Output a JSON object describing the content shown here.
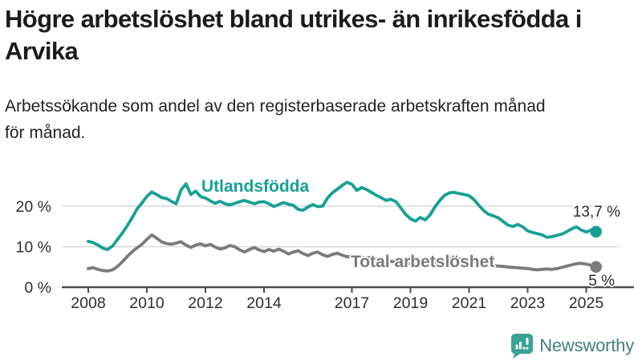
{
  "header": {
    "title": "Högre arbetslöshet bland utrikes- än inrikesfödda i Arvika",
    "title_lines": [
      "Högre arbetslöshet bland utrikes- än inrikesfödda i",
      "Arvika"
    ],
    "subtitle": "Arbetssökande som andel av den registerbaserade arbetskraften månad för månad.",
    "subtitle_lines": [
      "Arbetssökande som andel av den registerbaserade arbetskraften månad",
      "för månad."
    ]
  },
  "chart_data": {
    "type": "line",
    "title": "Högre arbetslöshet bland utrikes- än inrikesfödda i Arvika",
    "subtitle": "Arbetssökande som andel av den registerbaserade arbetskraften månad för månad.",
    "x_unit": "year-month",
    "x_start_year": 2008,
    "x_step_years": 0.16667,
    "x_end_year": 2025.33,
    "x_ticks": [
      2008,
      2010,
      2012,
      2014,
      2017,
      2019,
      2021,
      2023,
      2025
    ],
    "x_tick_labels": [
      "2008",
      "2010",
      "2012",
      "2014",
      "2017",
      "2019",
      "2021",
      "2023",
      "2025"
    ],
    "y_ticks": [
      0,
      10,
      20
    ],
    "y_tick_labels": [
      "0 %",
      "10 %",
      "20 %"
    ],
    "ylim": [
      0,
      29.5
    ],
    "grid": "horizontal",
    "legend_position": "inline-labels-on-lines",
    "axis_color": "#4c4c4c",
    "gridline_color": "#d9d9d9",
    "tick_label_color": "#2d2d2d",
    "end_label_color": "#2b2b2b",
    "series": [
      {
        "name": "Utlandsfödda",
        "color": "#16a095",
        "end_label": "13,7 %",
        "end_value": 13.7,
        "values": [
          11.3,
          11.0,
          10.4,
          9.6,
          9.3,
          10.2,
          11.8,
          13.4,
          15.2,
          17.2,
          19.3,
          20.8,
          22.4,
          23.5,
          22.9,
          22.1,
          21.9,
          21.2,
          20.6,
          24.0,
          25.5,
          22.9,
          23.7,
          22.4,
          22.0,
          21.3,
          20.7,
          21.2,
          20.6,
          20.3,
          20.7,
          21.1,
          21.4,
          21.0,
          20.6,
          21.0,
          21.1,
          20.6,
          19.9,
          20.4,
          20.9,
          20.5,
          20.2,
          19.2,
          19.0,
          19.8,
          20.4,
          19.9,
          20.0,
          22.0,
          23.3,
          24.2,
          25.1,
          25.9,
          25.4,
          23.9,
          24.6,
          24.1,
          23.4,
          22.7,
          22.1,
          21.4,
          21.7,
          21.1,
          19.6,
          18.0,
          16.9,
          16.3,
          17.2,
          16.6,
          17.8,
          19.8,
          21.4,
          22.7,
          23.3,
          23.4,
          23.1,
          22.9,
          22.6,
          21.6,
          20.2,
          18.9,
          18.0,
          17.6,
          17.1,
          16.2,
          15.3,
          15.0,
          15.5,
          14.9,
          13.9,
          13.5,
          13.2,
          12.9,
          12.3,
          12.5,
          12.8,
          13.1,
          13.7,
          14.4,
          14.9,
          14.1,
          13.6,
          14.1,
          13.7
        ]
      },
      {
        "name": "Total arbetslöshet",
        "color": "#7a7a7a",
        "end_label": "5 %",
        "end_value": 5.0,
        "values": [
          4.6,
          4.8,
          4.4,
          4.1,
          4.0,
          4.3,
          5.1,
          6.3,
          7.6,
          8.8,
          9.7,
          10.6,
          11.8,
          12.9,
          12.1,
          11.2,
          10.8,
          10.6,
          10.9,
          11.2,
          10.4,
          9.8,
          10.4,
          10.7,
          10.2,
          10.6,
          9.9,
          9.4,
          9.7,
          10.3,
          10.0,
          9.2,
          8.7,
          9.3,
          9.8,
          9.2,
          8.8,
          9.3,
          8.9,
          9.4,
          8.9,
          8.2,
          8.7,
          9.0,
          8.3,
          7.8,
          8.4,
          8.7,
          8.0,
          7.6,
          8.1,
          8.4,
          7.9,
          7.5,
          7.7,
          7.9,
          7.4,
          7.2,
          7.4,
          7.0,
          6.8,
          6.6,
          6.4,
          6.2,
          6.1,
          5.9,
          5.8,
          5.6,
          5.5,
          5.4,
          5.6,
          5.9,
          6.2,
          6.8,
          7.2,
          7.1,
          6.9,
          6.7,
          6.5,
          6.2,
          5.9,
          5.6,
          5.4,
          5.3,
          5.2,
          5.1,
          5.0,
          4.9,
          4.8,
          4.7,
          4.6,
          4.4,
          4.3,
          4.4,
          4.5,
          4.4,
          4.6,
          4.9,
          5.2,
          5.5,
          5.8,
          5.9,
          5.7,
          5.4,
          5.0
        ]
      }
    ]
  },
  "footer": {
    "brand": "Newsworthy",
    "brand_color": "#42807a",
    "icon_color": "#38a295",
    "icon": "newsworthy-chart-bubble-icon"
  }
}
